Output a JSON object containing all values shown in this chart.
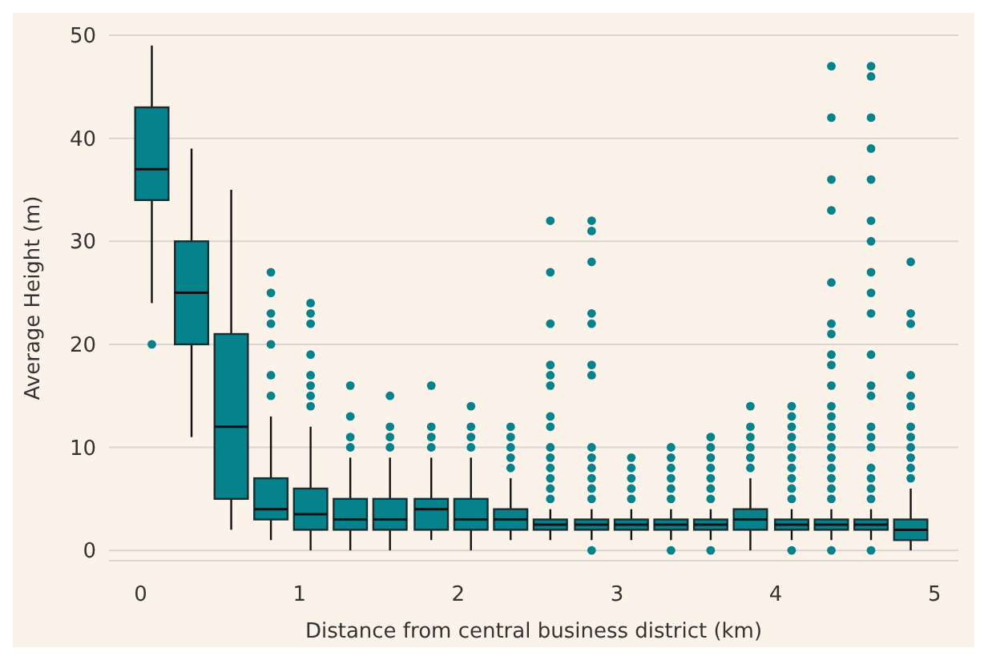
{
  "chart_data": {
    "type": "box",
    "xlabel": "Distance from central business district (km)",
    "ylabel": "Average Height (m)",
    "x": [
      0.07,
      0.32,
      0.57,
      0.82,
      1.07,
      1.32,
      1.57,
      1.83,
      2.08,
      2.33,
      2.58,
      2.84,
      3.09,
      3.34,
      3.59,
      3.84,
      4.1,
      4.35,
      4.6,
      4.85
    ],
    "color": "#05828b",
    "boxes": [
      {
        "low": 24,
        "q1": 34,
        "median": 37,
        "q3": 43,
        "high": 49,
        "outliers": [
          20
        ]
      },
      {
        "low": 11,
        "q1": 20,
        "median": 25,
        "q3": 30,
        "high": 39
      },
      {
        "low": 2,
        "q1": 5,
        "median": 12,
        "q3": 21,
        "high": 35
      },
      {
        "low": 1,
        "q1": 3,
        "median": 4,
        "q3": 7,
        "high": 13,
        "outliers": [
          27,
          25,
          23,
          22,
          20,
          17,
          15
        ]
      },
      {
        "low": 0,
        "q1": 2,
        "median": 3.5,
        "q3": 6,
        "high": 12,
        "outliers": [
          24,
          23,
          22,
          19,
          17,
          16,
          15,
          14
        ]
      },
      {
        "low": 0,
        "q1": 2,
        "median": 3,
        "q3": 5,
        "high": 9,
        "outliers": [
          16,
          13,
          11,
          10
        ]
      },
      {
        "low": 0,
        "q1": 2,
        "median": 3,
        "q3": 5,
        "high": 9,
        "outliers": [
          15,
          12,
          11,
          10
        ]
      },
      {
        "low": 1,
        "q1": 2,
        "median": 4,
        "q3": 5,
        "high": 9,
        "outliers": [
          16,
          12,
          11,
          10
        ]
      },
      {
        "low": 0,
        "q1": 2,
        "median": 3,
        "q3": 5,
        "high": 9,
        "outliers": [
          14,
          12,
          11,
          10
        ]
      },
      {
        "low": 1,
        "q1": 2,
        "median": 3,
        "q3": 4,
        "high": 7,
        "outliers": [
          12,
          11,
          10,
          9,
          8
        ]
      },
      {
        "low": 1,
        "q1": 2,
        "median": 2.5,
        "q3": 3,
        "high": 4,
        "outliers": [
          32,
          27,
          22,
          18,
          17,
          16,
          13,
          12,
          10,
          9,
          8,
          7,
          6,
          5
        ]
      },
      {
        "low": 1,
        "q1": 2,
        "median": 2.5,
        "q3": 3,
        "high": 4,
        "outliers": [
          32,
          31,
          28,
          23,
          22,
          18,
          17,
          10,
          9,
          8,
          7,
          6,
          5,
          0
        ]
      },
      {
        "low": 1,
        "q1": 2,
        "median": 2.5,
        "q3": 3,
        "high": 4,
        "outliers": [
          9,
          8,
          7,
          6,
          5
        ]
      },
      {
        "low": 1,
        "q1": 2,
        "median": 2.5,
        "q3": 3,
        "high": 4,
        "outliers": [
          10,
          9,
          8,
          7,
          6,
          5,
          0
        ]
      },
      {
        "low": 1,
        "q1": 2,
        "median": 2.5,
        "q3": 3,
        "high": 4,
        "outliers": [
          11,
          10,
          9,
          8,
          7,
          6,
          5,
          0
        ]
      },
      {
        "low": 0,
        "q1": 2,
        "median": 3,
        "q3": 4,
        "high": 7,
        "outliers": [
          14,
          12,
          11,
          10,
          9,
          8
        ]
      },
      {
        "low": 1,
        "q1": 2,
        "median": 2.5,
        "q3": 3,
        "high": 4,
        "outliers": [
          14,
          13,
          12,
          11,
          10,
          9,
          8,
          7,
          6,
          5,
          0
        ]
      },
      {
        "low": 1,
        "q1": 2,
        "median": 2.5,
        "q3": 3,
        "high": 4,
        "outliers": [
          47,
          42,
          36,
          33,
          26,
          22,
          21,
          19,
          18,
          16,
          14,
          13,
          12,
          11,
          10,
          9,
          8,
          7,
          6,
          5,
          0
        ]
      },
      {
        "low": 1,
        "q1": 2,
        "median": 2.5,
        "q3": 3,
        "high": 4,
        "outliers": [
          47,
          46,
          42,
          39,
          36,
          32,
          30,
          27,
          25,
          23,
          19,
          16,
          15,
          12,
          11,
          10,
          8,
          7,
          6,
          5,
          0
        ]
      },
      {
        "low": 0,
        "q1": 1,
        "median": 2,
        "q3": 3,
        "high": 6,
        "outliers": [
          28,
          23,
          22,
          17,
          15,
          14,
          12,
          11,
          10,
          9,
          8,
          7
        ]
      }
    ],
    "xlim": [
      -0.2,
      5.15
    ],
    "xticks": [
      0,
      1,
      2,
      3,
      4,
      5
    ],
    "ylim": [
      -1,
      50
    ],
    "yticks": [
      0,
      10,
      20,
      30,
      40,
      50
    ],
    "grid": "y",
    "marker": "circle"
  }
}
